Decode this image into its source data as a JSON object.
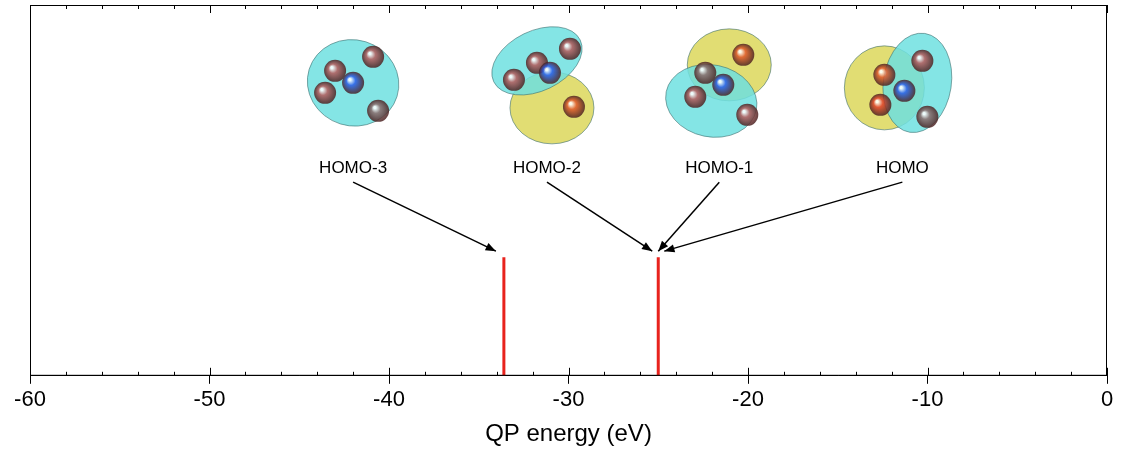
{
  "chart_data": {
    "type": "stem",
    "xlabel": "QP energy (eV)",
    "x": [
      -33.6,
      -25.0
    ],
    "values": [
      0.32,
      0.32
    ],
    "color": "#e8231d",
    "xlim": [
      -60,
      0
    ],
    "xticks": [
      -60,
      -50,
      -40,
      -30,
      -20,
      -10,
      0
    ],
    "ylim": [
      0,
      1
    ],
    "tick_labels": "x",
    "grid": false,
    "annotations": [
      {
        "text": "HOMO-3",
        "x": -33.6
      },
      {
        "text": "HOMO-2",
        "x": -25.0
      },
      {
        "text": "HOMO-1",
        "x": -25.0
      },
      {
        "text": "HOMO",
        "x": -25.0
      }
    ]
  }
}
